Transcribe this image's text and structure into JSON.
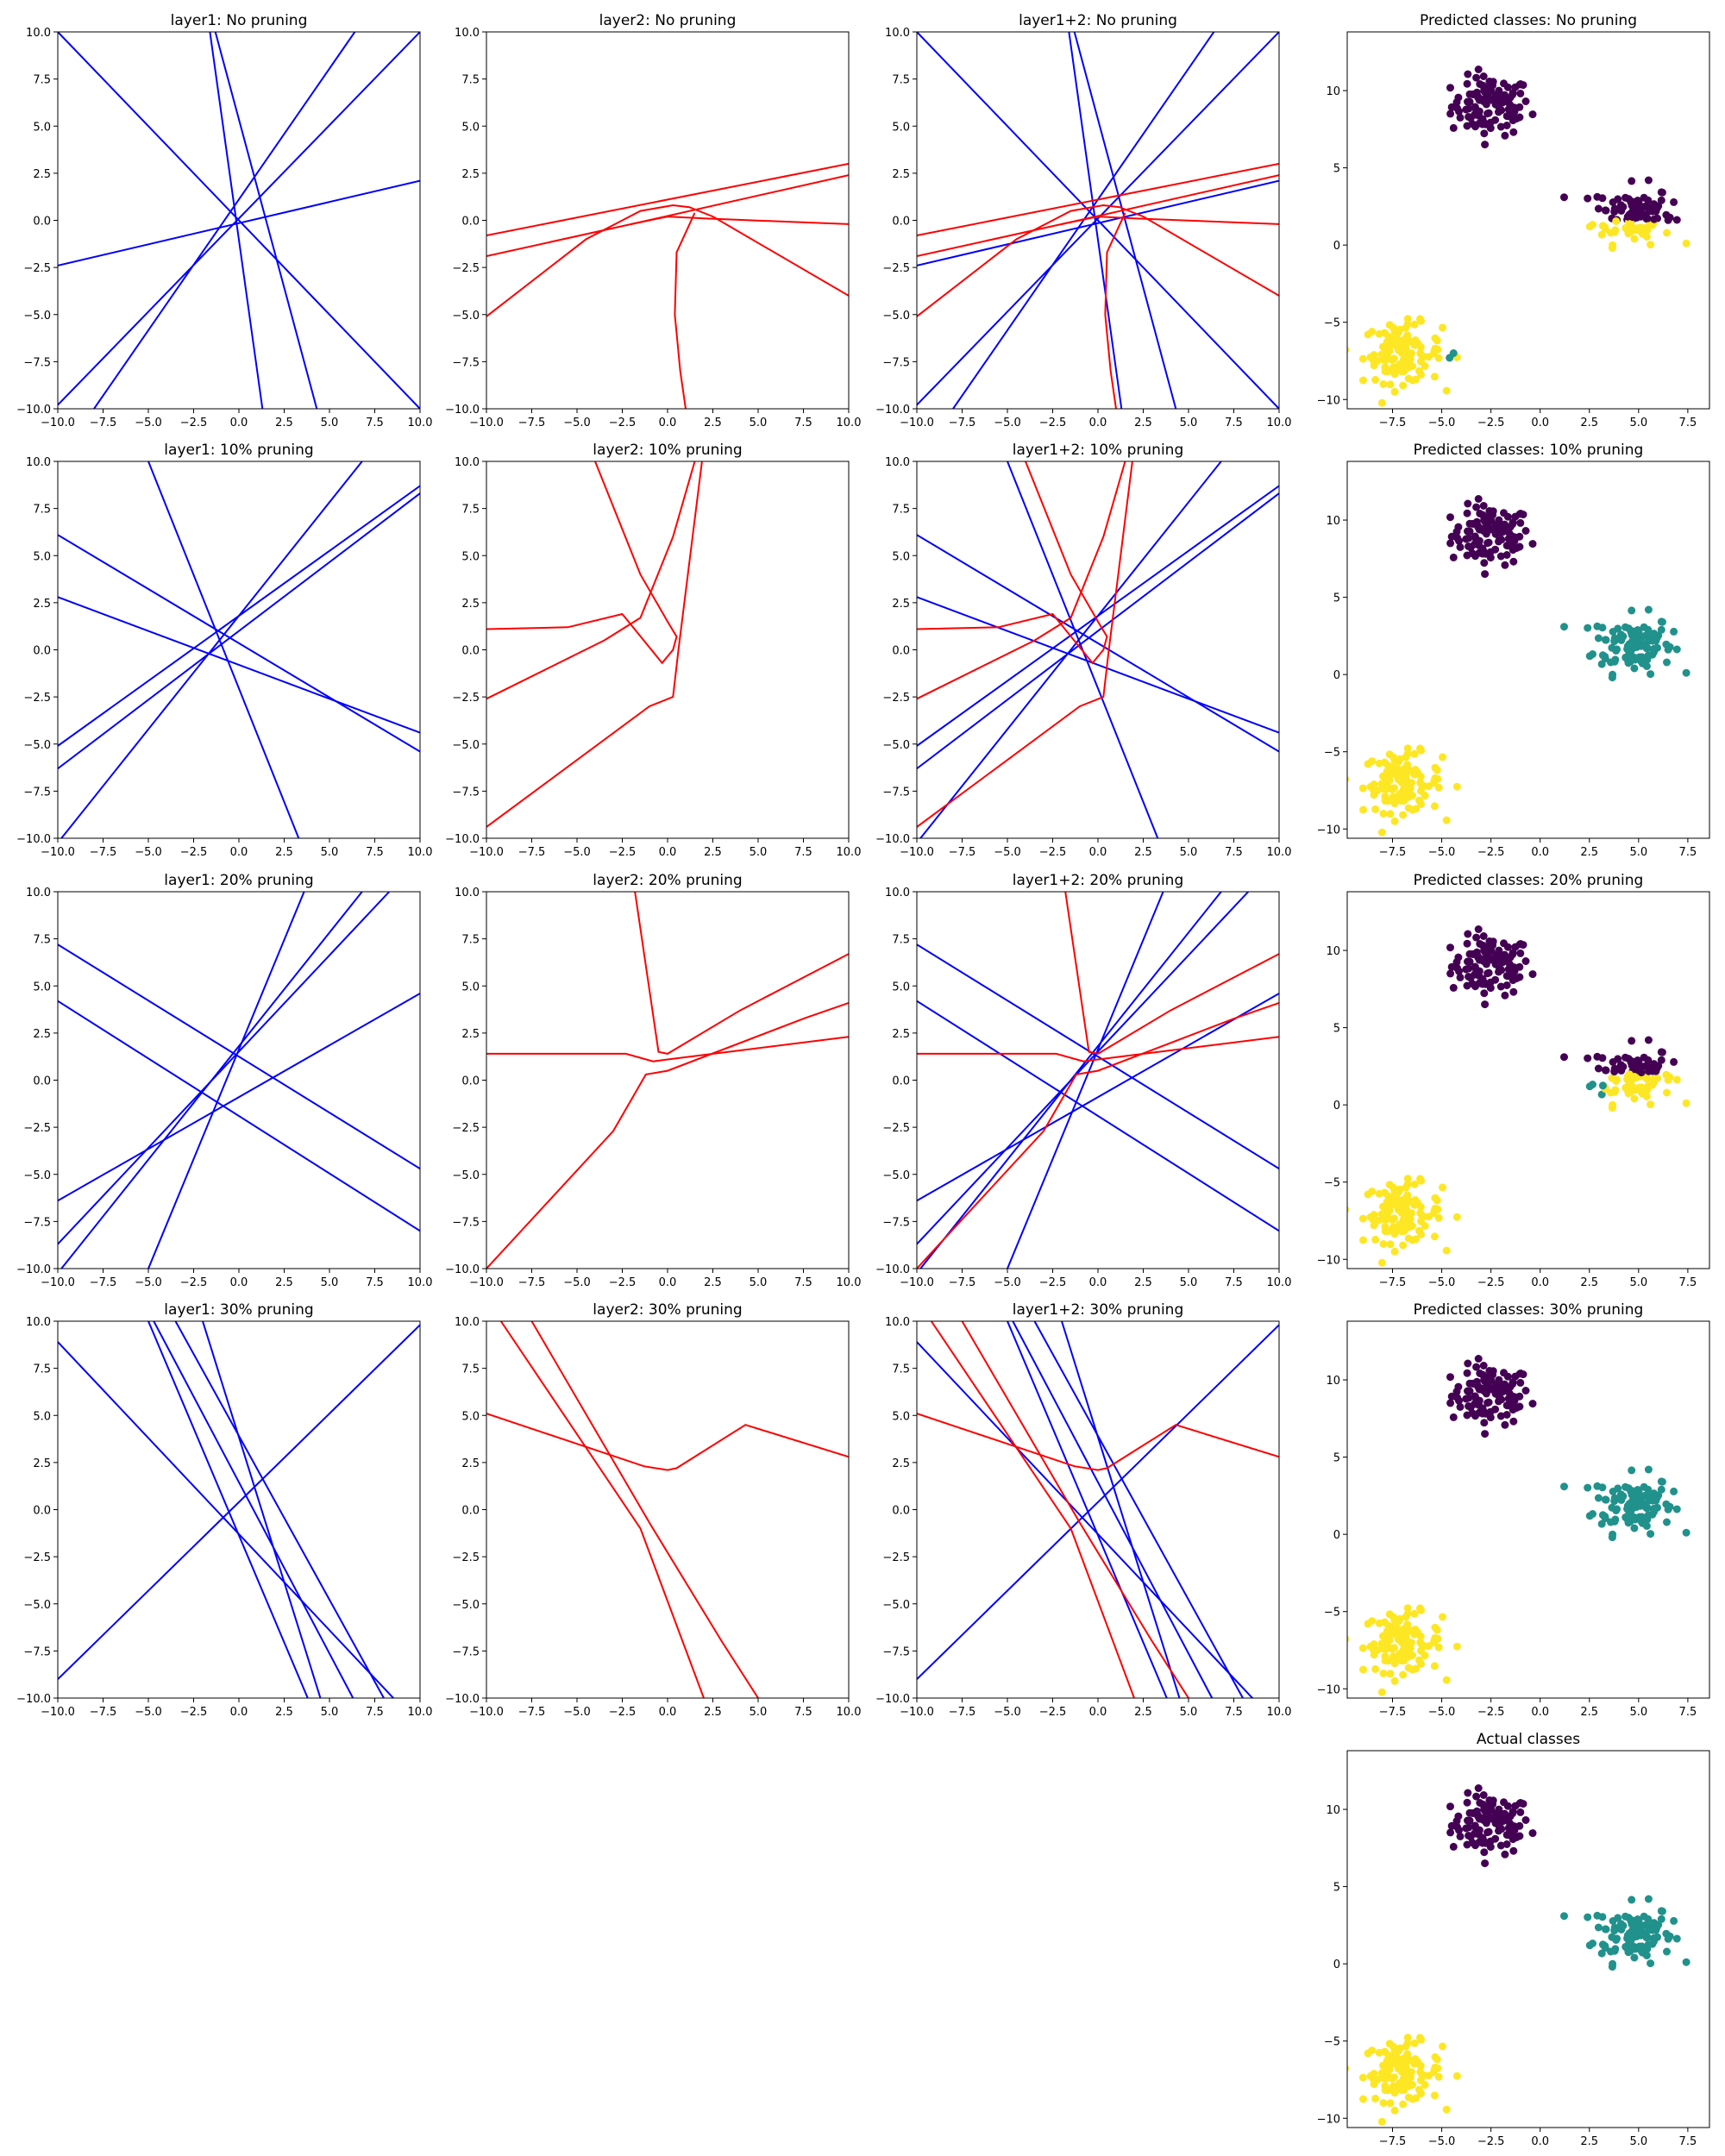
{
  "figure": {
    "colors": {
      "layer1": "#0000ff",
      "layer2": "#ff0000",
      "class0": "#440154",
      "class1": "#21918c",
      "class2": "#fde725"
    },
    "line_ticks": [
      "−10.0",
      "−7.5",
      "−5.0",
      "−2.5",
      "0.0",
      "2.5",
      "5.0",
      "7.5",
      "10.0"
    ],
    "scatter_xticks": [
      "−7.5",
      "−5.0",
      "−2.5",
      "0.0",
      "2.5",
      "5.0",
      "7.5"
    ],
    "scatter_yticks": [
      "10",
      "5",
      "0",
      "−5",
      "−10"
    ]
  },
  "chart_data": [
    {
      "type": "line",
      "title": "layer1: No pruning",
      "xlim": [
        -10,
        10
      ],
      "ylim": [
        -10,
        10
      ],
      "color": "layer1",
      "series": [
        {
          "x": [
            -10,
            10
          ],
          "y": [
            10,
            -10
          ]
        },
        {
          "x": [
            -10,
            10
          ],
          "y": [
            -9.8,
            10
          ]
        },
        {
          "x": [
            -8,
            6.4
          ],
          "y": [
            -10,
            10
          ]
        },
        {
          "x": [
            -10,
            10
          ],
          "y": [
            -2.4,
            2.1
          ]
        },
        {
          "x": [
            -1.6,
            1.3
          ],
          "y": [
            10,
            -10
          ]
        },
        {
          "x": [
            -1.3,
            4.3
          ],
          "y": [
            10,
            -10
          ]
        }
      ]
    },
    {
      "type": "line",
      "title": "layer2: No pruning",
      "xlim": [
        -10,
        10
      ],
      "ylim": [
        -10,
        10
      ],
      "color": "layer2",
      "series": [
        {
          "x": [
            -10,
            10
          ],
          "y": [
            -0.8,
            3.0
          ]
        },
        {
          "x": [
            -10,
            -2,
            10
          ],
          "y": [
            -1.9,
            -0.2,
            2.4
          ]
        },
        {
          "x": [
            -10,
            -4.5,
            -1.5,
            0.3,
            1.2,
            2.5,
            10
          ],
          "y": [
            -5.1,
            -1.0,
            0.5,
            0.8,
            0.7,
            0.2,
            -4.0
          ]
        },
        {
          "x": [
            -2,
            0,
            2,
            10
          ],
          "y": [
            -0.2,
            0.2,
            0.1,
            -0.2
          ]
        },
        {
          "x": [
            1.5,
            0.5,
            0.4,
            0.7,
            1.0
          ],
          "y": [
            0.4,
            -1.7,
            -5,
            -8,
            -10
          ]
        }
      ]
    },
    {
      "type": "line",
      "title": "layer1+2: No pruning",
      "xlim": [
        -10,
        10
      ],
      "ylim": [
        -10,
        10
      ],
      "color": "mixed",
      "series": [
        {
          "color": "layer1",
          "x": [
            -10,
            10
          ],
          "y": [
            10,
            -10
          ]
        },
        {
          "color": "layer1",
          "x": [
            -10,
            10
          ],
          "y": [
            -9.8,
            10
          ]
        },
        {
          "color": "layer1",
          "x": [
            -8,
            6.4
          ],
          "y": [
            -10,
            10
          ]
        },
        {
          "color": "layer1",
          "x": [
            -10,
            10
          ],
          "y": [
            -2.4,
            2.1
          ]
        },
        {
          "color": "layer1",
          "x": [
            -1.6,
            1.3
          ],
          "y": [
            10,
            -10
          ]
        },
        {
          "color": "layer1",
          "x": [
            -1.3,
            4.3
          ],
          "y": [
            10,
            -10
          ]
        },
        {
          "color": "layer2",
          "x": [
            -10,
            10
          ],
          "y": [
            -0.8,
            3.0
          ]
        },
        {
          "color": "layer2",
          "x": [
            -10,
            -2,
            10
          ],
          "y": [
            -1.9,
            -0.2,
            2.4
          ]
        },
        {
          "color": "layer2",
          "x": [
            -10,
            -4.5,
            -1.5,
            0.3,
            1.2,
            2.5,
            10
          ],
          "y": [
            -5.1,
            -1.0,
            0.5,
            0.8,
            0.7,
            0.2,
            -4.0
          ]
        },
        {
          "color": "layer2",
          "x": [
            -2,
            0,
            2,
            10
          ],
          "y": [
            -0.2,
            0.2,
            0.1,
            -0.2
          ]
        },
        {
          "color": "layer2",
          "x": [
            1.5,
            0.5,
            0.4,
            0.7,
            1.0
          ],
          "y": [
            0.4,
            -1.7,
            -5,
            -8,
            -10
          ]
        }
      ]
    },
    {
      "type": "scatter",
      "title": "Predicted classes: No pruning",
      "xlim": [
        -9.8,
        8.6
      ],
      "ylim": [
        -10.6,
        13.8
      ],
      "mode": "nopruning"
    },
    {
      "type": "line",
      "title": "layer1: 10% pruning",
      "xlim": [
        -10,
        10
      ],
      "ylim": [
        -10,
        10
      ],
      "color": "layer1",
      "series": [
        {
          "x": [
            -5,
            3.3
          ],
          "y": [
            10,
            -10
          ]
        },
        {
          "x": [
            -10,
            10
          ],
          "y": [
            6.1,
            -5.4
          ]
        },
        {
          "x": [
            -10,
            10
          ],
          "y": [
            2.8,
            -4.4
          ]
        },
        {
          "x": [
            -10,
            10
          ],
          "y": [
            -5.1,
            8.7
          ]
        },
        {
          "x": [
            -10,
            10
          ],
          "y": [
            -6.3,
            8.3
          ]
        },
        {
          "x": [
            -9.8,
            6.8
          ],
          "y": [
            -10,
            10
          ]
        }
      ]
    },
    {
      "type": "line",
      "title": "layer2: 10% pruning",
      "xlim": [
        -10,
        10
      ],
      "ylim": [
        -10,
        10
      ],
      "color": "layer2",
      "series": [
        {
          "x": [
            -4,
            -1.5,
            0,
            0.5,
            0.3,
            -0.3,
            -2.5,
            -5.5,
            -10
          ],
          "y": [
            10,
            4.0,
            1.5,
            0.7,
            0,
            -0.7,
            1.9,
            1.2,
            1.1
          ]
        },
        {
          "x": [
            -10,
            -3.5,
            -1.5,
            0.3,
            1.5
          ],
          "y": [
            -2.6,
            0.5,
            1.7,
            6.0,
            10
          ]
        },
        {
          "x": [
            -10,
            -1,
            0.3,
            0.6,
            1.9
          ],
          "y": [
            -9.4,
            -3.0,
            -2.5,
            0,
            10
          ]
        }
      ]
    },
    {
      "type": "line",
      "title": "layer1+2: 10% pruning",
      "xlim": [
        -10,
        10
      ],
      "ylim": [
        -10,
        10
      ],
      "color": "mixed",
      "series": [
        {
          "color": "layer1",
          "x": [
            -5,
            3.3
          ],
          "y": [
            10,
            -10
          ]
        },
        {
          "color": "layer1",
          "x": [
            -10,
            10
          ],
          "y": [
            6.1,
            -5.4
          ]
        },
        {
          "color": "layer1",
          "x": [
            -10,
            10
          ],
          "y": [
            2.8,
            -4.4
          ]
        },
        {
          "color": "layer1",
          "x": [
            -10,
            10
          ],
          "y": [
            -5.1,
            8.7
          ]
        },
        {
          "color": "layer1",
          "x": [
            -10,
            10
          ],
          "y": [
            -6.3,
            8.3
          ]
        },
        {
          "color": "layer1",
          "x": [
            -9.8,
            6.8
          ],
          "y": [
            -10,
            10
          ]
        },
        {
          "color": "layer2",
          "x": [
            -4,
            -1.5,
            0,
            0.5,
            0.3,
            -0.3,
            -2.5,
            -5.5,
            -10
          ],
          "y": [
            10,
            4.0,
            1.5,
            0.7,
            0,
            -0.7,
            1.9,
            1.2,
            1.1
          ]
        },
        {
          "color": "layer2",
          "x": [
            -10,
            -3.5,
            -1.5,
            0.3,
            1.5
          ],
          "y": [
            -2.6,
            0.5,
            1.7,
            6.0,
            10
          ]
        },
        {
          "color": "layer2",
          "x": [
            -10,
            -1,
            0.3,
            0.6,
            1.9
          ],
          "y": [
            -9.4,
            -3.0,
            -2.5,
            0,
            10
          ]
        }
      ]
    },
    {
      "type": "scatter",
      "title": "Predicted classes: 10% pruning",
      "xlim": [
        -9.8,
        8.6
      ],
      "ylim": [
        -10.6,
        13.8
      ],
      "mode": "correct"
    },
    {
      "type": "line",
      "title": "layer1: 20% pruning",
      "xlim": [
        -10,
        10
      ],
      "ylim": [
        -10,
        10
      ],
      "color": "layer1",
      "series": [
        {
          "x": [
            -10,
            10
          ],
          "y": [
            7.2,
            -4.7
          ]
        },
        {
          "x": [
            -10,
            10
          ],
          "y": [
            4.2,
            -8.0
          ]
        },
        {
          "x": [
            -10,
            10
          ],
          "y": [
            -6.4,
            4.6
          ]
        },
        {
          "x": [
            -10,
            8.3
          ],
          "y": [
            -8.7,
            10
          ]
        },
        {
          "x": [
            -9.8,
            6.8
          ],
          "y": [
            -10,
            10
          ]
        },
        {
          "x": [
            -5,
            3.6
          ],
          "y": [
            -10,
            10
          ]
        }
      ]
    },
    {
      "type": "line",
      "title": "layer2: 20% pruning",
      "xlim": [
        -10,
        10
      ],
      "ylim": [
        -10,
        10
      ],
      "color": "layer2",
      "series": [
        {
          "x": [
            -10,
            -2.3,
            -0.8,
            0,
            10
          ],
          "y": [
            1.4,
            1.4,
            1.0,
            1.1,
            2.3
          ]
        },
        {
          "x": [
            -1.8,
            -0.5,
            0,
            4,
            10
          ],
          "y": [
            10,
            1.5,
            1.4,
            3.7,
            6.7
          ]
        },
        {
          "x": [
            -10,
            -3,
            -1.2,
            0,
            7.6,
            10
          ],
          "y": [
            -10,
            -2.7,
            0.3,
            0.5,
            3.3,
            4.1
          ]
        }
      ]
    },
    {
      "type": "line",
      "title": "layer1+2: 20% pruning",
      "xlim": [
        -10,
        10
      ],
      "ylim": [
        -10,
        10
      ],
      "color": "mixed",
      "series": [
        {
          "color": "layer1",
          "x": [
            -10,
            10
          ],
          "y": [
            7.2,
            -4.7
          ]
        },
        {
          "color": "layer1",
          "x": [
            -10,
            10
          ],
          "y": [
            4.2,
            -8.0
          ]
        },
        {
          "color": "layer1",
          "x": [
            -10,
            10
          ],
          "y": [
            -6.4,
            4.6
          ]
        },
        {
          "color": "layer1",
          "x": [
            -10,
            8.3
          ],
          "y": [
            -8.7,
            10
          ]
        },
        {
          "color": "layer1",
          "x": [
            -9.8,
            6.8
          ],
          "y": [
            -10,
            10
          ]
        },
        {
          "color": "layer1",
          "x": [
            -5,
            3.6
          ],
          "y": [
            -10,
            10
          ]
        },
        {
          "color": "layer2",
          "x": [
            -10,
            -2.3,
            -0.8,
            0,
            10
          ],
          "y": [
            1.4,
            1.4,
            1.0,
            1.1,
            2.3
          ]
        },
        {
          "color": "layer2",
          "x": [
            -1.8,
            -0.5,
            0,
            4,
            10
          ],
          "y": [
            10,
            1.5,
            1.4,
            3.7,
            6.7
          ]
        },
        {
          "color": "layer2",
          "x": [
            -10,
            -3,
            -1.2,
            0,
            7.6,
            10
          ],
          "y": [
            -10,
            -2.7,
            0.3,
            0.5,
            3.3,
            4.1
          ]
        }
      ]
    },
    {
      "type": "scatter",
      "title": "Predicted classes: 20% pruning",
      "xlim": [
        -9.8,
        8.6
      ],
      "ylim": [
        -10.6,
        13.8
      ],
      "mode": "split"
    },
    {
      "type": "line",
      "title": "layer1: 30% pruning",
      "xlim": [
        -10,
        10
      ],
      "ylim": [
        -10,
        10
      ],
      "color": "layer1",
      "series": [
        {
          "x": [
            -10,
            10
          ],
          "y": [
            8.9,
            -11.5
          ]
        },
        {
          "x": [
            -10,
            10
          ],
          "y": [
            -9.0,
            9.8
          ]
        },
        {
          "x": [
            -5,
            3.8
          ],
          "y": [
            10,
            -10
          ]
        },
        {
          "x": [
            -4.7,
            6.3
          ],
          "y": [
            10,
            -10
          ]
        },
        {
          "x": [
            -2,
            4.5
          ],
          "y": [
            10,
            -10
          ]
        },
        {
          "x": [
            -3.5,
            8.0
          ],
          "y": [
            10,
            -10
          ]
        }
      ]
    },
    {
      "type": "line",
      "title": "layer2: 30% pruning",
      "xlim": [
        -10,
        10
      ],
      "ylim": [
        -10,
        10
      ],
      "color": "layer2",
      "series": [
        {
          "x": [
            -10,
            -1.3,
            0,
            0.5,
            4.3,
            10
          ],
          "y": [
            5.1,
            2.3,
            2.1,
            2.2,
            4.5,
            2.8
          ]
        },
        {
          "x": [
            -9.2,
            -1.5,
            2.0
          ],
          "y": [
            10,
            -1.0,
            -10
          ]
        },
        {
          "x": [
            -7.5,
            -1,
            3,
            5
          ],
          "y": [
            10,
            -0.7,
            -7.0,
            -10
          ]
        }
      ]
    },
    {
      "type": "line",
      "title": "layer1+2: 30% pruning",
      "xlim": [
        -10,
        10
      ],
      "ylim": [
        -10,
        10
      ],
      "color": "mixed",
      "series": [
        {
          "color": "layer1",
          "x": [
            -10,
            10
          ],
          "y": [
            8.9,
            -11.5
          ]
        },
        {
          "color": "layer1",
          "x": [
            -10,
            10
          ],
          "y": [
            -9.0,
            9.8
          ]
        },
        {
          "color": "layer1",
          "x": [
            -5,
            3.8
          ],
          "y": [
            10,
            -10
          ]
        },
        {
          "color": "layer1",
          "x": [
            -4.7,
            6.3
          ],
          "y": [
            10,
            -10
          ]
        },
        {
          "color": "layer1",
          "x": [
            -2,
            4.5
          ],
          "y": [
            10,
            -10
          ]
        },
        {
          "color": "layer1",
          "x": [
            -3.5,
            8.0
          ],
          "y": [
            10,
            -10
          ]
        },
        {
          "color": "layer2",
          "x": [
            -10,
            -1.3,
            0,
            0.5,
            4.3,
            10
          ],
          "y": [
            5.1,
            2.3,
            2.1,
            2.2,
            4.5,
            2.8
          ]
        },
        {
          "color": "layer2",
          "x": [
            -9.2,
            -1.5,
            2.0
          ],
          "y": [
            10,
            -1.0,
            -10
          ]
        },
        {
          "color": "layer2",
          "x": [
            -7.5,
            -1,
            3,
            5
          ],
          "y": [
            10,
            -0.7,
            -7.0,
            -10
          ]
        }
      ]
    },
    {
      "type": "scatter",
      "title": "Predicted classes: 30% pruning",
      "xlim": [
        -9.8,
        8.6
      ],
      "ylim": [
        -10.6,
        13.8
      ],
      "mode": "correct"
    },
    {
      "type": "scatter",
      "title": "Actual classes",
      "xlim": [
        -9.8,
        8.6
      ],
      "ylim": [
        -10.6,
        13.8
      ],
      "mode": "correct"
    }
  ]
}
